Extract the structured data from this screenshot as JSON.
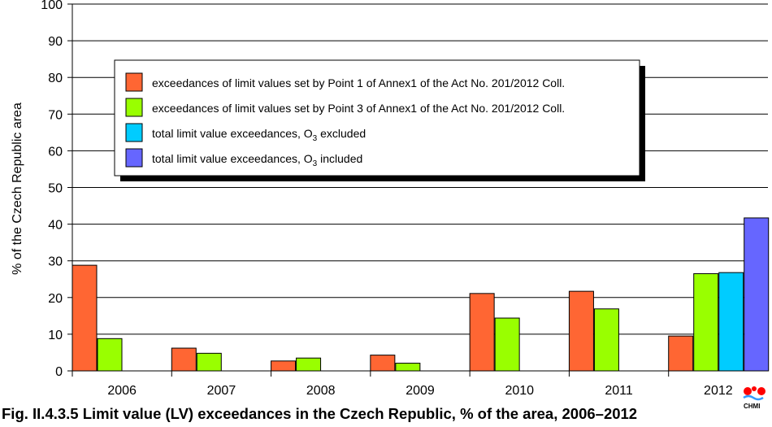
{
  "caption": "Fig. II.4.3.5  Limit value (LV) exceedances in the Czech Republic, % of the area, 2006–2012",
  "logo": {
    "text": "CHMI"
  },
  "chart_data": {
    "type": "bar",
    "title": "",
    "xlabel": "",
    "ylabel": "% of the Czech Republic area",
    "ylim": [
      0,
      100
    ],
    "yticks": [
      0,
      10,
      20,
      30,
      40,
      50,
      60,
      70,
      80,
      90,
      100
    ],
    "grid": true,
    "legend_position": "top-center",
    "categories": [
      "2006",
      "2007",
      "2008",
      "2009",
      "2010",
      "2011",
      "2012"
    ],
    "series": [
      {
        "name": "exceedances of limit values set by Point 1 of Annex1 of the Act No. 201/2012 Coll.",
        "legend_text": "exceedances of limit values set by Point 1 of Annex1 of the Act No. 201/2012 Coll.",
        "color": "#ff6633",
        "values": [
          28.8,
          6.2,
          2.7,
          4.3,
          21.1,
          21.7,
          9.5
        ]
      },
      {
        "name": "exceedances of limit values set by Point 3 of Annex1 of the Act No. 201/2012 Coll.",
        "legend_text": "exceedances of limit values set by Point 3 of Annex1 of the Act No. 201/2012 Coll.",
        "color": "#99ff00",
        "values": [
          8.8,
          4.8,
          3.5,
          2.1,
          14.4,
          16.9,
          26.5
        ]
      },
      {
        "name": "total limit value exceedances, O3 excluded",
        "legend_text": "total limit value exceedances, O",
        "legend_sub": "3",
        "legend_tail": " excluded",
        "color": "#00ccff",
        "values": [
          null,
          null,
          null,
          null,
          null,
          null,
          26.8
        ]
      },
      {
        "name": "total limit value exceedances, O3 included",
        "legend_text": "total limit value exceedances, O",
        "legend_sub": "3",
        "legend_tail": " included",
        "color": "#6666ff",
        "values": [
          null,
          null,
          null,
          null,
          null,
          null,
          41.7
        ]
      }
    ]
  }
}
